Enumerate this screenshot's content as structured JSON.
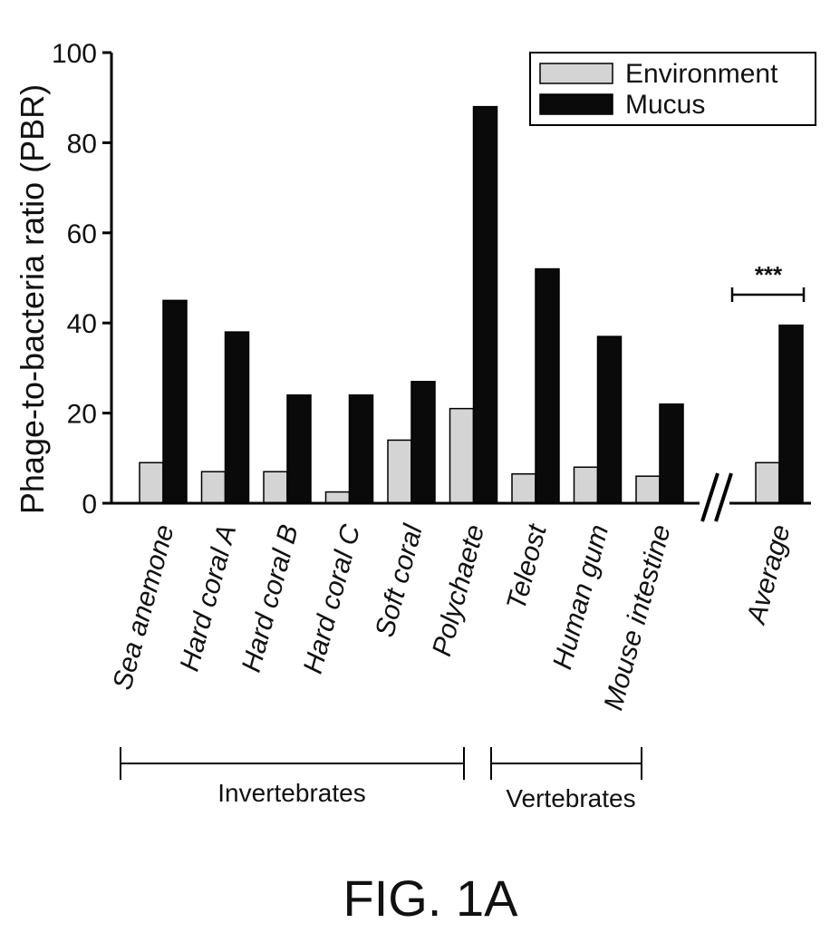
{
  "chart_data": {
    "type": "bar",
    "ylabel": "Phage-to-bacteria ratio (PBR)",
    "xlabel": "",
    "ylim": [
      0,
      100
    ],
    "yticks": [
      0,
      20,
      40,
      60,
      80,
      100
    ],
    "categories": [
      "Sea anemone",
      "Hard coral A",
      "Hard coral B",
      "Hard coral C",
      "Soft coral",
      "Polychaete",
      "Teleost",
      "Human gum",
      "Mouse intestine",
      "Average"
    ],
    "series": [
      {
        "name": "Environment",
        "color": "#d4d4d4",
        "values": [
          9,
          7,
          7,
          2.5,
          14,
          21,
          6.5,
          8,
          6,
          9
        ]
      },
      {
        "name": "Mucus",
        "color": "#0a0a0a",
        "values": [
          45,
          38,
          24,
          24,
          27,
          88,
          52,
          37,
          22,
          39.5
        ]
      }
    ],
    "legend": {
      "position": "top-right",
      "entries": [
        "Environment",
        "Mucus"
      ]
    },
    "groups": [
      {
        "label": "Invertebrates",
        "categories": [
          "Sea anemone",
          "Hard coral A",
          "Hard coral B",
          "Hard coral C",
          "Soft coral",
          "Polychaete"
        ]
      },
      {
        "label": "Vertebrates",
        "categories": [
          "Teleost",
          "Human gum",
          "Mouse intestine"
        ]
      }
    ],
    "annotations": [
      {
        "text": "***",
        "category": "Average",
        "meaning": "significance between Environment and Mucus"
      }
    ],
    "axis_break": "//",
    "grid": false
  },
  "caption": "FIG. 1A"
}
